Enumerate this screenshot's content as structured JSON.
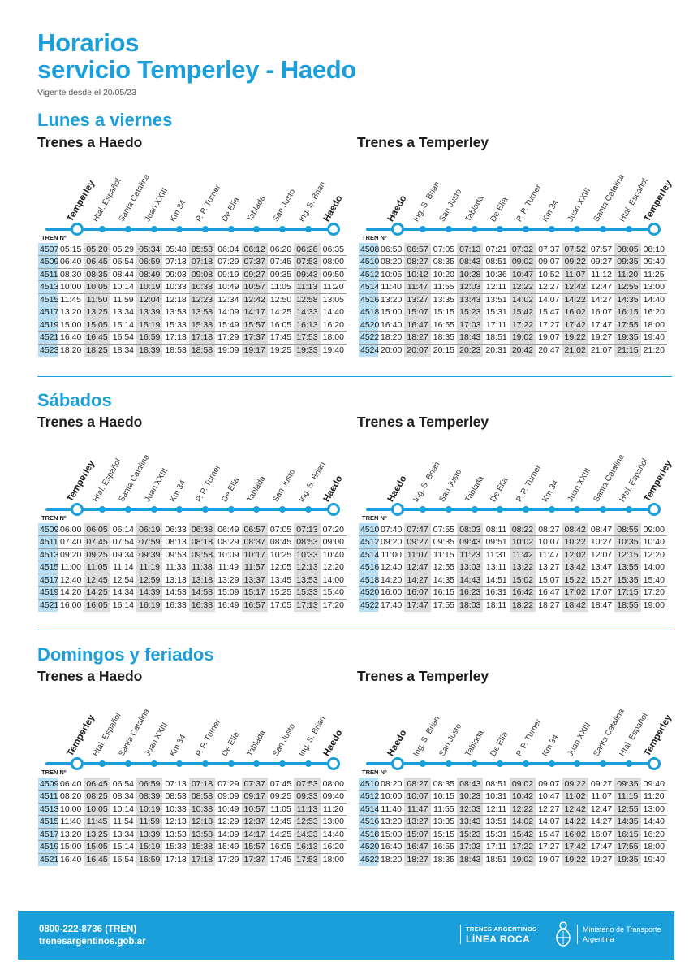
{
  "header": {
    "title_line1": "Horarios",
    "title_line2": "servicio Temperley - Haedo",
    "subtitle": "Vigente desde el 20/05/23"
  },
  "tren_label": "TREN Nº",
  "stations_to_haedo": [
    "Temperley",
    "Htal. Español",
    "Santa Catalina",
    "Juan XXIII",
    "Km 34",
    "P. P. Turner",
    "De Elía",
    "Tablada",
    "San Justo",
    "Ing. S. Brian",
    "Haedo"
  ],
  "stations_to_temperley": [
    "Haedo",
    "Ing. S. Brian",
    "San Justo",
    "Tablada",
    "De Elía",
    "P. P. Turner",
    "Km 34",
    "Juan XXIII",
    "Santa Catalina",
    "Htal. Español",
    "Temperley"
  ],
  "sections": [
    {
      "title": "Lunes a viernes",
      "to_haedo": {
        "title": "Trenes a Haedo",
        "rows": [
          [
            "4507",
            "05:15",
            "05:20",
            "05:29",
            "05:34",
            "05:48",
            "05:53",
            "06:04",
            "06:12",
            "06:20",
            "06:28",
            "06:35"
          ],
          [
            "4509",
            "06:40",
            "06:45",
            "06:54",
            "06:59",
            "07:13",
            "07:18",
            "07:29",
            "07:37",
            "07:45",
            "07:53",
            "08:00"
          ],
          [
            "4511",
            "08:30",
            "08:35",
            "08:44",
            "08:49",
            "09:03",
            "09:08",
            "09:19",
            "09:27",
            "09:35",
            "09:43",
            "09:50"
          ],
          [
            "4513",
            "10:00",
            "10:05",
            "10:14",
            "10:19",
            "10:33",
            "10:38",
            "10:49",
            "10:57",
            "11:05",
            "11:13",
            "11:20"
          ],
          [
            "4515",
            "11:45",
            "11:50",
            "11:59",
            "12:04",
            "12:18",
            "12:23",
            "12:34",
            "12:42",
            "12:50",
            "12:58",
            "13:05"
          ],
          [
            "4517",
            "13:20",
            "13:25",
            "13:34",
            "13:39",
            "13:53",
            "13:58",
            "14:09",
            "14:17",
            "14:25",
            "14:33",
            "14:40"
          ],
          [
            "4519",
            "15:00",
            "15:05",
            "15:14",
            "15:19",
            "15:33",
            "15:38",
            "15:49",
            "15:57",
            "16:05",
            "16:13",
            "16:20"
          ],
          [
            "4521",
            "16:40",
            "16:45",
            "16:54",
            "16:59",
            "17:13",
            "17:18",
            "17:29",
            "17:37",
            "17:45",
            "17:53",
            "18:00"
          ],
          [
            "4523",
            "18:20",
            "18:25",
            "18:34",
            "18:39",
            "18:53",
            "18:58",
            "19:09",
            "19:17",
            "19:25",
            "19:33",
            "19:40"
          ]
        ]
      },
      "to_temperley": {
        "title": "Trenes a Temperley",
        "rows": [
          [
            "4508",
            "06:50",
            "06:57",
            "07:05",
            "07:13",
            "07:21",
            "07:32",
            "07:37",
            "07:52",
            "07:57",
            "08:05",
            "08:10"
          ],
          [
            "4510",
            "08:20",
            "08:27",
            "08:35",
            "08:43",
            "08:51",
            "09:02",
            "09:07",
            "09:22",
            "09:27",
            "09:35",
            "09:40"
          ],
          [
            "4512",
            "10:05",
            "10:12",
            "10:20",
            "10:28",
            "10:36",
            "10:47",
            "10:52",
            "11:07",
            "11:12",
            "11:20",
            "11:25"
          ],
          [
            "4514",
            "11:40",
            "11:47",
            "11:55",
            "12:03",
            "12:11",
            "12:22",
            "12:27",
            "12:42",
            "12:47",
            "12:55",
            "13:00"
          ],
          [
            "4516",
            "13:20",
            "13:27",
            "13:35",
            "13:43",
            "13:51",
            "14:02",
            "14:07",
            "14:22",
            "14:27",
            "14:35",
            "14:40"
          ],
          [
            "4518",
            "15:00",
            "15:07",
            "15:15",
            "15:23",
            "15:31",
            "15:42",
            "15:47",
            "16:02",
            "16:07",
            "16:15",
            "16:20"
          ],
          [
            "4520",
            "16:40",
            "16:47",
            "16:55",
            "17:03",
            "17:11",
            "17:22",
            "17:27",
            "17:42",
            "17:47",
            "17:55",
            "18:00"
          ],
          [
            "4522",
            "18:20",
            "18:27",
            "18:35",
            "18:43",
            "18:51",
            "19:02",
            "19:07",
            "19:22",
            "19:27",
            "19:35",
            "19:40"
          ],
          [
            "4524",
            "20:00",
            "20:07",
            "20:15",
            "20:23",
            "20:31",
            "20:42",
            "20:47",
            "21:02",
            "21:07",
            "21:15",
            "21:20"
          ]
        ]
      }
    },
    {
      "title": "Sábados",
      "to_haedo": {
        "title": "Trenes a Haedo",
        "rows": [
          [
            "4509",
            "06:00",
            "06:05",
            "06:14",
            "06:19",
            "06:33",
            "06:38",
            "06:49",
            "06:57",
            "07:05",
            "07:13",
            "07:20"
          ],
          [
            "4511",
            "07:40",
            "07:45",
            "07:54",
            "07:59",
            "08:13",
            "08:18",
            "08:29",
            "08:37",
            "08:45",
            "08:53",
            "09:00"
          ],
          [
            "4513",
            "09:20",
            "09:25",
            "09:34",
            "09:39",
            "09:53",
            "09:58",
            "10:09",
            "10:17",
            "10:25",
            "10:33",
            "10:40"
          ],
          [
            "4515",
            "11:00",
            "11:05",
            "11:14",
            "11:19",
            "11:33",
            "11:38",
            "11:49",
            "11:57",
            "12:05",
            "12:13",
            "12:20"
          ],
          [
            "4517",
            "12:40",
            "12:45",
            "12:54",
            "12:59",
            "13:13",
            "13:18",
            "13:29",
            "13:37",
            "13:45",
            "13:53",
            "14:00"
          ],
          [
            "4519",
            "14:20",
            "14:25",
            "14:34",
            "14:39",
            "14:53",
            "14:58",
            "15:09",
            "15:17",
            "15:25",
            "15:33",
            "15:40"
          ],
          [
            "4521",
            "16:00",
            "16:05",
            "16:14",
            "16:19",
            "16:33",
            "16:38",
            "16:49",
            "16:57",
            "17:05",
            "17:13",
            "17:20"
          ]
        ]
      },
      "to_temperley": {
        "title": "Trenes a Temperley",
        "rows": [
          [
            "4510",
            "07:40",
            "07:47",
            "07:55",
            "08:03",
            "08:11",
            "08:22",
            "08:27",
            "08:42",
            "08:47",
            "08:55",
            "09:00"
          ],
          [
            "4512",
            "09:20",
            "09:27",
            "09:35",
            "09:43",
            "09:51",
            "10:02",
            "10:07",
            "10:22",
            "10:27",
            "10:35",
            "10:40"
          ],
          [
            "4514",
            "11:00",
            "11:07",
            "11:15",
            "11:23",
            "11:31",
            "11:42",
            "11:47",
            "12:02",
            "12:07",
            "12:15",
            "12:20"
          ],
          [
            "4516",
            "12:40",
            "12:47",
            "12:55",
            "13:03",
            "13:11",
            "13:22",
            "13:27",
            "13:42",
            "13:47",
            "13:55",
            "14:00"
          ],
          [
            "4518",
            "14:20",
            "14:27",
            "14:35",
            "14:43",
            "14:51",
            "15:02",
            "15:07",
            "15:22",
            "15:27",
            "15:35",
            "15:40"
          ],
          [
            "4520",
            "16:00",
            "16:07",
            "16:15",
            "16:23",
            "16:31",
            "16:42",
            "16:47",
            "17:02",
            "17:07",
            "17:15",
            "17:20"
          ],
          [
            "4522",
            "17:40",
            "17:47",
            "17:55",
            "18:03",
            "18:11",
            "18:22",
            "18:27",
            "18:42",
            "18:47",
            "18:55",
            "19:00"
          ]
        ]
      }
    },
    {
      "title": "Domingos y feriados",
      "to_haedo": {
        "title": "Trenes a Haedo",
        "rows": [
          [
            "4509",
            "06:40",
            "06:45",
            "06:54",
            "06:59",
            "07:13",
            "07:18",
            "07:29",
            "07:37",
            "07:45",
            "07:53",
            "08:00"
          ],
          [
            "4511",
            "08:20",
            "08:25",
            "08:34",
            "08:39",
            "08:53",
            "08:58",
            "09:09",
            "09:17",
            "09:25",
            "09:33",
            "09:40"
          ],
          [
            "4513",
            "10:00",
            "10:05",
            "10:14",
            "10:19",
            "10:33",
            "10:38",
            "10:49",
            "10:57",
            "11:05",
            "11:13",
            "11:20"
          ],
          [
            "4515",
            "11:40",
            "11:45",
            "11:54",
            "11:59",
            "12:13",
            "12:18",
            "12:29",
            "12:37",
            "12:45",
            "12:53",
            "13:00"
          ],
          [
            "4517",
            "13:20",
            "13:25",
            "13:34",
            "13:39",
            "13:53",
            "13:58",
            "14:09",
            "14:17",
            "14:25",
            "14:33",
            "14:40"
          ],
          [
            "4519",
            "15:00",
            "15:05",
            "15:14",
            "15:19",
            "15:33",
            "15:38",
            "15:49",
            "15:57",
            "16:05",
            "16:13",
            "16:20"
          ],
          [
            "4521",
            "16:40",
            "16:45",
            "16:54",
            "16:59",
            "17:13",
            "17:18",
            "17:29",
            "17:37",
            "17:45",
            "17:53",
            "18:00"
          ]
        ]
      },
      "to_temperley": {
        "title": "Trenes a Temperley",
        "rows": [
          [
            "4510",
            "08:20",
            "08:27",
            "08:35",
            "08:43",
            "08:51",
            "09:02",
            "09:07",
            "09:22",
            "09:27",
            "09:35",
            "09:40"
          ],
          [
            "4512",
            "10:00",
            "10:07",
            "10:15",
            "10:23",
            "10:31",
            "10:42",
            "10:47",
            "11:02",
            "11:07",
            "11:15",
            "11:20"
          ],
          [
            "4514",
            "11:40",
            "11:47",
            "11:55",
            "12:03",
            "12:11",
            "12:22",
            "12:27",
            "12:42",
            "12:47",
            "12:55",
            "13:00"
          ],
          [
            "4516",
            "13:20",
            "13:27",
            "13:35",
            "13:43",
            "13:51",
            "14:02",
            "14:07",
            "14:22",
            "14:27",
            "14:35",
            "14:40"
          ],
          [
            "4518",
            "15:00",
            "15:07",
            "15:15",
            "15:23",
            "15:31",
            "15:42",
            "15:47",
            "16:02",
            "16:07",
            "16:15",
            "16:20"
          ],
          [
            "4520",
            "16:40",
            "16:47",
            "16:55",
            "17:03",
            "17:11",
            "17:22",
            "17:27",
            "17:42",
            "17:47",
            "17:55",
            "18:00"
          ],
          [
            "4522",
            "18:20",
            "18:27",
            "18:35",
            "18:43",
            "18:51",
            "19:02",
            "19:07",
            "19:22",
            "19:27",
            "19:35",
            "19:40"
          ]
        ]
      }
    }
  ],
  "footer": {
    "phone": "0800-222-8736 (TREN)",
    "website": "trenesargentinos.gob.ar",
    "brand_top": "TRENES ARGENTINOS",
    "brand_bottom": "LÍNEA ROCA",
    "ministry_line1": "Ministerio de Transporte",
    "ministry_line2": "Argentina"
  },
  "colors": {
    "accent": "#1a9fda",
    "train_number_bg": "#b8dff4",
    "shaded_column_bg": "#dcdcdc"
  }
}
